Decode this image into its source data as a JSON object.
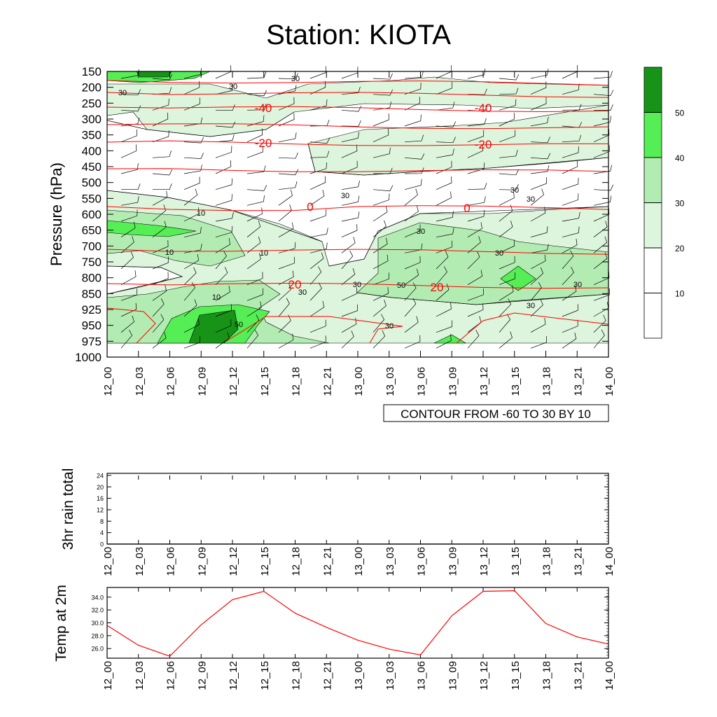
{
  "title": "Station: KIOTA",
  "chart_data": [
    {
      "type": "heatmap",
      "ylabel": "Pressure (hPa)",
      "y_ticks": [
        "150",
        "200",
        "250",
        "300",
        "350",
        "400",
        "450",
        "500",
        "550",
        "600",
        "650",
        "700",
        "750",
        "800",
        "850",
        "925",
        "950",
        "975",
        "1000"
      ],
      "x_ticks": [
        "12_00",
        "12_03",
        "12_06",
        "12_09",
        "12_12",
        "12_15",
        "12_18",
        "12_21",
        "13_00",
        "13_03",
        "13_06",
        "13_09",
        "13_12",
        "13_15",
        "13_18",
        "13_21",
        "14_00"
      ],
      "fill_levels": [
        10,
        20,
        30,
        40,
        50
      ],
      "fill_colors": [
        "#ffffff",
        "#ffffff",
        "#dcf5dc",
        "#b2ecb2",
        "#55ee55",
        "#179417"
      ],
      "colorbar_labels": [
        "50",
        "40",
        "30",
        "20",
        "10"
      ],
      "contour_info": "CONTOUR FROM -60 TO 30 BY 10",
      "rh_contour_labels": [
        "30",
        "30",
        "30",
        "10",
        "10",
        "10",
        "10",
        "30",
        "30",
        "30",
        "30",
        "30",
        "30",
        "30",
        "30",
        "50",
        "50",
        "30",
        "30"
      ],
      "temperature_contour_labels": [
        "-40",
        "-40",
        "-20",
        "-20",
        "0",
        "0",
        "20",
        "20"
      ],
      "temperature_contour_color": "#ff0000",
      "grid": false,
      "legend": "colorbar-right"
    },
    {
      "type": "line",
      "ylabel": "3hr rain total",
      "y_ticks": [
        "0",
        "4",
        "8",
        "12",
        "16",
        "20",
        "24"
      ],
      "ylim": [
        0,
        24
      ],
      "x": [
        "12_00",
        "12_03",
        "12_06",
        "12_09",
        "12_12",
        "12_15",
        "12_18",
        "12_21",
        "13_00",
        "13_03",
        "13_06",
        "13_09",
        "13_12",
        "13_15",
        "13_18",
        "13_21",
        "14_00"
      ],
      "values": [
        0,
        0,
        0,
        0,
        0,
        0,
        0,
        0,
        0,
        0,
        0,
        0,
        0,
        0,
        0,
        0,
        0
      ]
    },
    {
      "type": "line",
      "ylabel": "Temp at 2m",
      "y_ticks": [
        "26.0",
        "28.0",
        "30.0",
        "32.0",
        "34.0"
      ],
      "ylim": [
        24.5,
        35.5
      ],
      "x": [
        "12_00",
        "12_03",
        "12_06",
        "12_09",
        "12_12",
        "12_15",
        "12_18",
        "12_21",
        "13_00",
        "13_03",
        "13_06",
        "13_09",
        "13_12",
        "13_15",
        "13_18",
        "13_21",
        "14_00"
      ],
      "values": [
        29.6,
        26.5,
        24.8,
        29.7,
        33.6,
        34.9,
        31.5,
        29.3,
        27.3,
        25.9,
        25.0,
        31.1,
        34.9,
        35.0,
        29.9,
        27.8,
        26.7
      ],
      "line_color": "#ff0000"
    }
  ]
}
